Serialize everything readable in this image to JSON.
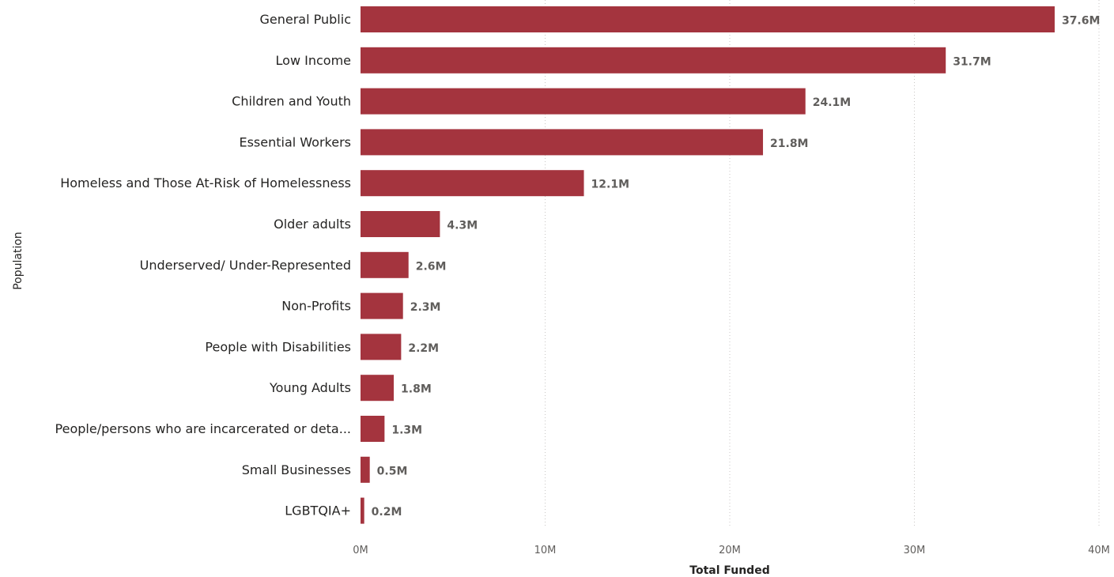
{
  "chart_data": {
    "type": "bar",
    "orientation": "horizontal",
    "categories": [
      "General Public",
      "Low Income",
      "Children and Youth",
      "Essential Workers",
      "Homeless and Those At-Risk of Homelessness",
      "Older adults",
      "Underserved/ Under-Represented",
      "Non-Profits",
      "People with Disabilities",
      "Young Adults",
      "People/persons who are incarcerated or deta...",
      "Small Businesses",
      "LGBTQIA+"
    ],
    "values": [
      37.6,
      31.7,
      24.1,
      21.8,
      12.1,
      4.3,
      2.6,
      2.3,
      2.2,
      1.8,
      1.3,
      0.5,
      0.2
    ],
    "value_unit": "M",
    "data_labels": [
      "37.6M",
      "31.7M",
      "24.1M",
      "21.8M",
      "12.1M",
      "4.3M",
      "2.6M",
      "2.3M",
      "2.2M",
      "1.8M",
      "1.3M",
      "0.5M",
      "0.2M"
    ],
    "xlabel": "Total Funded",
    "ylabel": "Population",
    "xlim": [
      0,
      40
    ],
    "xticks": [
      0,
      10,
      20,
      30,
      40
    ],
    "xtick_labels": [
      "0M",
      "10M",
      "20M",
      "30M",
      "40M"
    ],
    "grid": true,
    "bar_color": "#a4343e"
  }
}
